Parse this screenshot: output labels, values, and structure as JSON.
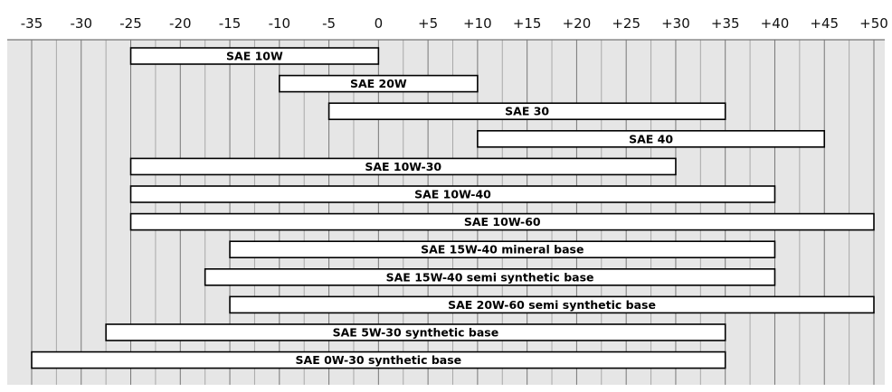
{
  "chart_data": {
    "type": "bar",
    "orientation": "horizontal-range",
    "xlim": [
      -35,
      50
    ],
    "x_ticks": [
      "-35",
      "-30",
      "-25",
      "-20",
      "-15",
      "-10",
      "-5",
      "0",
      "+5",
      "+10",
      "+15",
      "+20",
      "+25",
      "+30",
      "+35",
      "+40",
      "+45",
      "+50"
    ],
    "grid": true,
    "background_color": "#e6e6e6",
    "series": [
      {
        "name": "SAE 10W",
        "start": -25,
        "end": 0
      },
      {
        "name": "SAE 20W",
        "start": -10,
        "end": 10
      },
      {
        "name": "SAE 30",
        "start": -5,
        "end": 35
      },
      {
        "name": "SAE 40",
        "start": 10,
        "end": 45
      },
      {
        "name": "SAE 10W-30",
        "start": -25,
        "end": 30
      },
      {
        "name": "SAE 10W-40",
        "start": -25,
        "end": 40
      },
      {
        "name": "SAE 10W-60",
        "start": -25,
        "end": 50
      },
      {
        "name": "SAE 15W-40 mineral base",
        "start": -15,
        "end": 40
      },
      {
        "name": "SAE 15W-40 semi synthetic base",
        "start": -17.5,
        "end": 40
      },
      {
        "name": "SAE 20W-60 semi synthetic base",
        "start": -15,
        "end": 50
      },
      {
        "name": "SAE 5W-30 synthetic base",
        "start": -27.5,
        "end": 35
      },
      {
        "name": "SAE 0W-30 synthetic base",
        "start": -35,
        "end": 35
      }
    ]
  }
}
